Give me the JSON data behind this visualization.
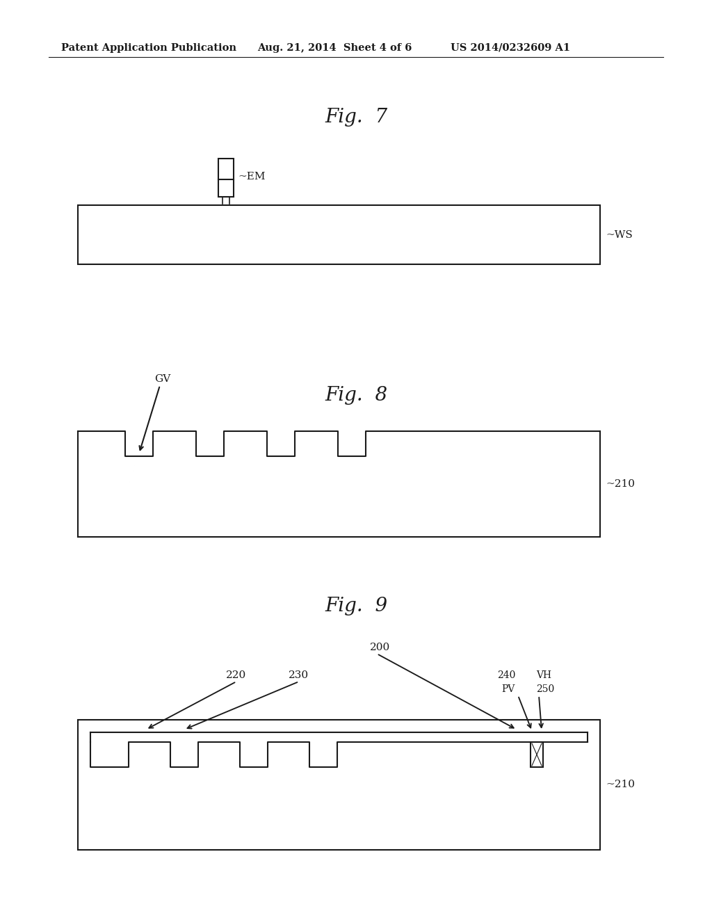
{
  "bg_color": "#ffffff",
  "header_left": "Patent Application Publication",
  "header_mid": "Aug. 21, 2014  Sheet 4 of 6",
  "header_right": "US 2014/0232609 A1",
  "fig7_title": "Fig.  7",
  "fig8_title": "Fig.  8",
  "fig9_title": "Fig.  9",
  "fig7_label_em": "EM",
  "fig7_label_ws": "WS",
  "fig8_label_gv": "GV",
  "fig8_label_210": "210",
  "fig9_label_200": "200",
  "fig9_label_220": "220",
  "fig9_label_230": "230",
  "fig9_label_240": "240",
  "fig9_label_pv": "PV",
  "fig9_label_vh": "VH",
  "fig9_label_250": "250",
  "fig9_label_210": "210",
  "line_color": "#1a1a1a",
  "line_width": 1.5
}
